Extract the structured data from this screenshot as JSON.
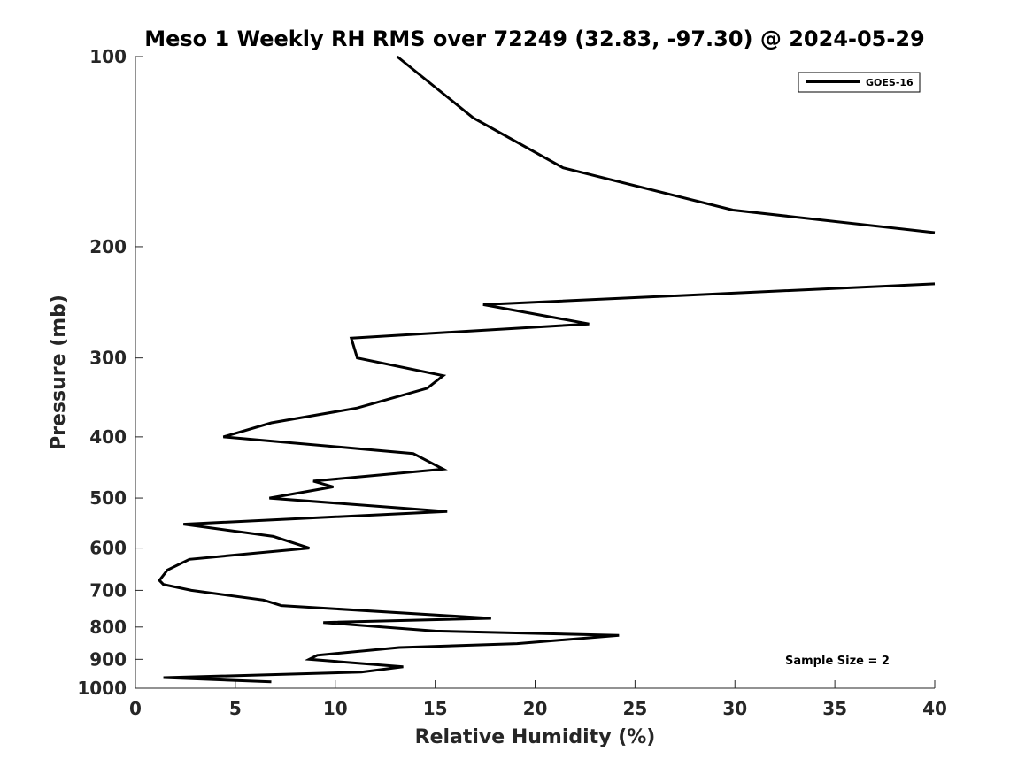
{
  "chart_data": {
    "type": "line",
    "title": "Meso 1 Weekly RH RMS over 72249 (32.83, -97.30) @ 2024-05-29",
    "xlabel": "Relative Humidity (%)",
    "ylabel": "Pressure (mb)",
    "xlim": [
      0,
      40
    ],
    "ylim": [
      100,
      1000
    ],
    "y_scale": "log",
    "y_reversed": true,
    "grid": false,
    "x_ticks": [
      0,
      5,
      10,
      15,
      20,
      25,
      30,
      35,
      40
    ],
    "y_ticks": [
      100,
      200,
      300,
      400,
      500,
      600,
      700,
      800,
      900,
      1000
    ],
    "legend": {
      "position": "top-right",
      "entries": [
        "GOES-16"
      ]
    },
    "annotation": "Sample Size = 2",
    "colors": {
      "line": "#000000",
      "axis": "#262626"
    },
    "series": [
      {
        "name": "GOES-16",
        "color": "#000000",
        "points": [
          [
            13.1,
            100
          ],
          [
            16.9,
            125
          ],
          [
            21.4,
            150
          ],
          [
            29.9,
            175
          ],
          [
            40.0,
            190
          ],
          [
            null,
            null
          ],
          [
            40.0,
            229
          ],
          [
            17.4,
            247
          ],
          [
            22.7,
            265
          ],
          [
            10.8,
            279
          ],
          [
            11.1,
            300
          ],
          [
            15.4,
            320
          ],
          [
            14.6,
            335
          ],
          [
            11.1,
            360
          ],
          [
            6.8,
            380
          ],
          [
            4.4,
            400
          ],
          [
            13.9,
            425
          ],
          [
            15.4,
            450
          ],
          [
            8.9,
            470
          ],
          [
            9.9,
            480
          ],
          [
            6.7,
            500
          ],
          [
            15.6,
            525
          ],
          [
            2.4,
            550
          ],
          [
            6.9,
            575
          ],
          [
            8.7,
            600
          ],
          [
            2.7,
            625
          ],
          [
            1.6,
            650
          ],
          [
            1.2,
            675
          ],
          [
            1.4,
            685
          ],
          [
            2.8,
            700
          ],
          [
            6.4,
            725
          ],
          [
            7.3,
            740
          ],
          [
            17.8,
            775
          ],
          [
            9.4,
            787
          ],
          [
            15.0,
            812
          ],
          [
            24.2,
            825
          ],
          [
            19.1,
            850
          ],
          [
            13.2,
            862
          ],
          [
            9.1,
            887
          ],
          [
            8.7,
            900
          ],
          [
            13.4,
            925
          ],
          [
            11.3,
            943
          ],
          [
            1.4,
            962
          ],
          [
            6.8,
            977
          ]
        ]
      }
    ]
  }
}
